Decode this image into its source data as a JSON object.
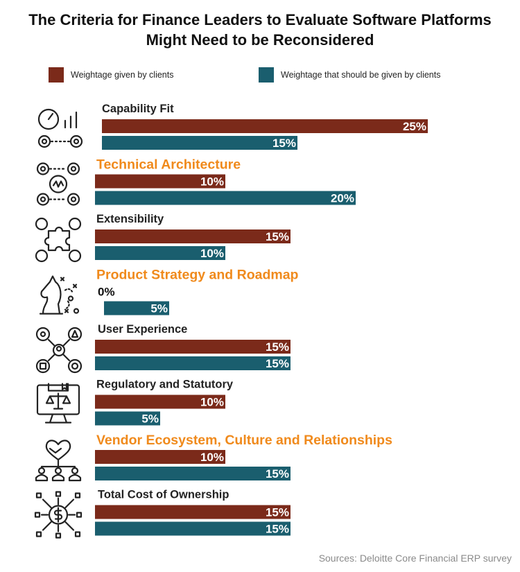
{
  "title_line1": "The Criteria for Finance Leaders to Evaluate Software Platforms",
  "title_line2": "Might Need to be Reconsidered",
  "source": "Sources: Deloitte Core Financial ERP survey",
  "colors": {
    "given": "#7b2a1a",
    "should": "#1a5e6e",
    "highlight": "#f08a1c",
    "label": "#222222"
  },
  "chart_data": {
    "type": "bar",
    "orientation": "horizontal",
    "value_suffix": "%",
    "categories": [
      "Capability Fit",
      "Technical Architecture",
      "Extensibility",
      "Product Strategy and Roadmap",
      "User Experience",
      "Regulatory and Statutory",
      "Vendor Ecosystem, Culture and  Relationships",
      "Total Cost of Ownership"
    ],
    "highlighted": [
      false,
      true,
      false,
      true,
      false,
      false,
      true,
      false
    ],
    "icons": [
      "gauge-chart-gears-icon",
      "gears-network-icon",
      "puzzle-piece-icon",
      "chess-knight-strategy-icon",
      "user-options-icon",
      "monitor-scales-icon",
      "handshake-heart-team-icon",
      "dollar-network-icon"
    ],
    "series": [
      {
        "name": "Weightage given by clients",
        "values": [
          25,
          10,
          15,
          0,
          15,
          10,
          10,
          15
        ]
      },
      {
        "name": "Weightage that should be given by clients",
        "values": [
          15,
          20,
          10,
          5,
          15,
          5,
          15,
          15
        ]
      }
    ],
    "xlim": [
      0,
      25
    ],
    "grid": false,
    "legend_position": "top"
  }
}
